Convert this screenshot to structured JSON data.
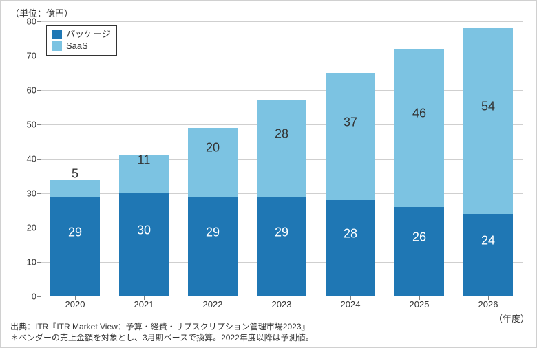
{
  "chart": {
    "type": "stacked-bar",
    "unit_label": "（単位：億円）",
    "x_axis_title": "（年度）",
    "background_color": "#ffffff",
    "grid_color": "#cfcfcf",
    "axis_color": "#808080",
    "text_color": "#333333",
    "ylim": [
      0,
      80
    ],
    "ytick_step": 10,
    "yticks": [
      0,
      10,
      20,
      30,
      40,
      50,
      60,
      70,
      80
    ],
    "categories": [
      "2020",
      "2021",
      "2022",
      "2023",
      "2024",
      "2025",
      "2026"
    ],
    "series": [
      {
        "name": "パッケージ",
        "color": "#1f77b4",
        "label_color": "#ffffff",
        "values": [
          29,
          30,
          29,
          29,
          28,
          26,
          24
        ]
      },
      {
        "name": "SaaS",
        "color": "#7cc3e2",
        "label_color": "#333333",
        "values": [
          5,
          11,
          20,
          28,
          37,
          46,
          54
        ]
      }
    ],
    "bar_width_ratio": 0.72,
    "label_fontsize": 18,
    "tick_fontsize": 13
  },
  "legend": {
    "items": [
      {
        "label": "パッケージ",
        "color": "#1f77b4"
      },
      {
        "label": "SaaS",
        "color": "#7cc3e2"
      }
    ]
  },
  "footnote": {
    "line1": "出典：ITR『ITR Market View：予算・経費・サブスクリプション管理市場2023』",
    "line2": "＊ベンダーの売上金額を対象とし、3月期ベースで換算。2022年度以降は予測値。"
  }
}
